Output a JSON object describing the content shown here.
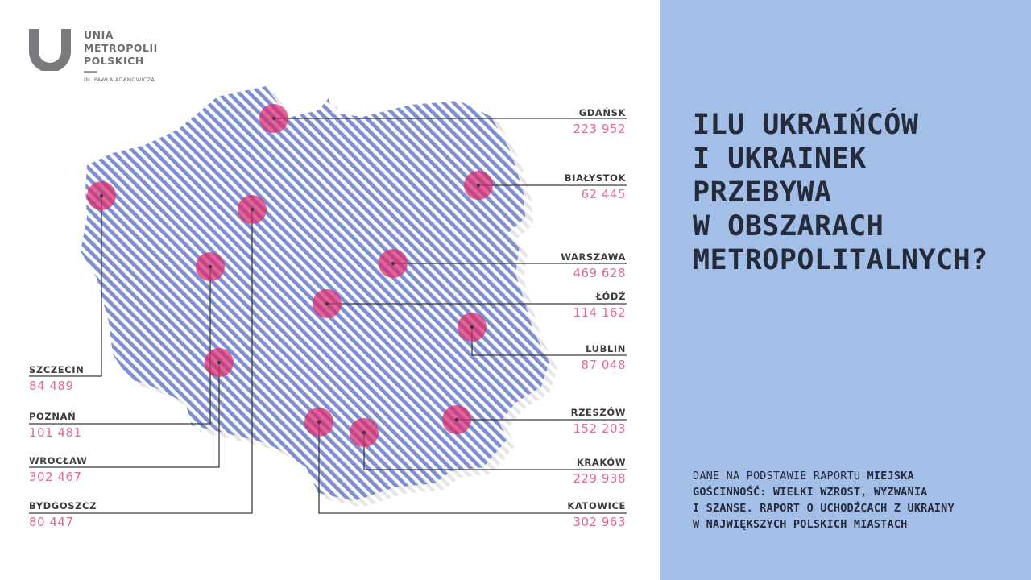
{
  "logo": {
    "line1": "UNIA",
    "line2": "METROPOLII",
    "line3": "POLSKICH",
    "subtitle": "IM. PAWŁA ADAMOWICZA"
  },
  "title": {
    "lines": [
      "ILU UKRAIŃCÓW",
      "I UKRAINEK",
      "PRZEBYWA",
      "W OBSZARACH",
      "METROPOLITALNYCH?"
    ]
  },
  "source": {
    "line1_plain": "DANE NA PODSTAWIE RAPORTU ",
    "line1_bold": "MIEJSKA",
    "line2": "GOŚCINNOŚĆ: WIELKI WZROST, WYZWANIA",
    "line3": "I SZANSE. RAPORT O UCHODŹCACH Z UKRAINY",
    "line4": "W NAJWIĘKSZYCH POLSKICH MIASTACH"
  },
  "cities": [
    {
      "name": "GDAŃSK",
      "value": "223 952"
    },
    {
      "name": "BIAŁYSTOK",
      "value": "62 445"
    },
    {
      "name": "WARSZAWA",
      "value": "469 628"
    },
    {
      "name": "ŁÓDŹ",
      "value": "114 162"
    },
    {
      "name": "LUBLIN",
      "value": "87 048"
    },
    {
      "name": "RZESZÓW",
      "value": "152 203"
    },
    {
      "name": "KRAKÓW",
      "value": "229 938"
    },
    {
      "name": "KATOWICE",
      "value": "302 963"
    },
    {
      "name": "SZCZECIN",
      "value": "84 489"
    },
    {
      "name": "POZNAŃ",
      "value": "101 481"
    },
    {
      "name": "WROCŁAW",
      "value": "302 467"
    },
    {
      "name": "BYDGOSZCZ",
      "value": "80 447"
    }
  ],
  "colors": {
    "map_stripe": "#7d8fd0",
    "marker": "#d9296e",
    "value_text": "#e56a97",
    "panel": "#a3bfe8",
    "title_text": "#252b3a",
    "logo": "#6e6f72"
  },
  "icons": {
    "logo": "u-letter-logo-icon"
  }
}
